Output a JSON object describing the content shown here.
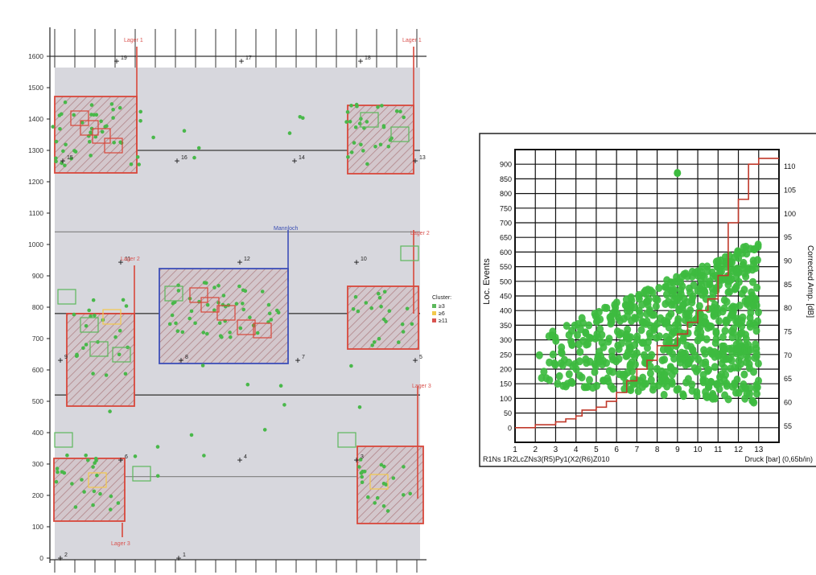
{
  "chart_data": [
    {
      "type": "scatter",
      "title": "",
      "ylim": [
        0,
        1650
      ],
      "y_ticks": [
        0,
        100,
        200,
        300,
        400,
        500,
        600,
        700,
        800,
        900,
        1000,
        1100,
        1200,
        1300,
        1400,
        1500,
        1600
      ],
      "legend": {
        "title": "Cluster:",
        "placement": "right",
        "entries": [
          {
            "label": "≥3",
            "color": "#5cb85c"
          },
          {
            "label": "≥6",
            "color": "#f2c94c"
          },
          {
            "label": "≥11",
            "color": "#d9534f"
          }
        ]
      },
      "region_labels": [
        {
          "text": "Lager 1",
          "color": "#d9534f"
        },
        {
          "text": "Lager 1",
          "color": "#d9534f"
        },
        {
          "text": "Lager 2",
          "color": "#d9534f"
        },
        {
          "text": "Lager 2",
          "color": "#d9534f"
        },
        {
          "text": "Lager 3",
          "color": "#d9534f"
        },
        {
          "text": "Lager 3",
          "color": "#d9534f"
        },
        {
          "text": "Mannloch",
          "color": "#3b4fb3"
        }
      ],
      "sensor_labels": [
        "19",
        "17",
        "18",
        "15",
        "16",
        "14",
        "13",
        "11",
        "12",
        "10",
        "9",
        "8",
        "7",
        "5",
        "6",
        "4",
        "3",
        "2",
        "1"
      ],
      "colors": {
        "background": "#d6d6dc",
        "hatch": "#c9a0a0",
        "point": "#49b84a",
        "box_red": "#d9483b",
        "box_blue": "#3d4fb8"
      }
    },
    {
      "type": "scatter",
      "xlabel": "Druck [bar] (0,65b/in)",
      "ylabel": "Loc. Events",
      "y2label": "Corrected Amp. [dB]",
      "footer_left": "R1Ns 1R2LcZNs3(R5)Py1(X2(R6)Z010",
      "x_ticks": [
        1,
        2,
        3,
        4,
        5,
        6,
        7,
        8,
        9,
        10,
        11,
        12,
        13
      ],
      "xlim": [
        1,
        14
      ],
      "y_ticks": [
        0,
        50,
        100,
        150,
        200,
        250,
        300,
        350,
        400,
        450,
        500,
        550,
        600,
        650,
        700,
        750,
        800,
        850,
        900
      ],
      "ylim": [
        -50,
        950
      ],
      "y2_ticks": [
        55,
        60,
        65,
        70,
        75,
        80,
        85,
        90,
        95,
        100,
        105,
        110
      ],
      "y2lim": [
        51.5,
        113.5
      ],
      "series": [
        {
          "x": [
            1,
            1.8,
            2,
            2.6,
            3,
            3.5,
            4,
            4.3,
            5,
            5.5,
            6,
            6.5,
            7,
            7.5,
            8,
            9,
            9.5,
            10,
            10.5,
            11,
            11.5,
            12,
            12.5,
            13,
            14
          ],
          "y": [
            0,
            0,
            10,
            10,
            20,
            30,
            40,
            60,
            70,
            90,
            120,
            160,
            200,
            230,
            280,
            320,
            360,
            400,
            440,
            520,
            700,
            780,
            900,
            920,
            920
          ]
        }
      ],
      "colors": {
        "points": "#3dbb3f",
        "line": "#c0392b",
        "grid": "#111111"
      }
    }
  ]
}
